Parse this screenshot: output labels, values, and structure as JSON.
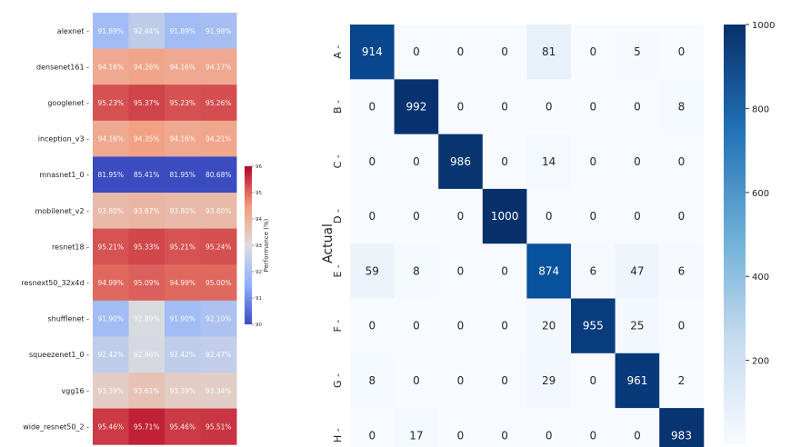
{
  "chart_data": [
    {
      "type": "heatmap",
      "rows": [
        "alexnet",
        "densenet161",
        "googlenet",
        "inception_v3",
        "mnasnet1_0",
        "mobilenet_v2",
        "resnet18",
        "resnext50_32x4d",
        "shufflenet",
        "squeezenet1_0",
        "vgg16",
        "wide_resnet50_2"
      ],
      "labels": [
        [
          "91.89%",
          "92.44%",
          "91.89%",
          "91.98%"
        ],
        [
          "94.16%",
          "94.26%",
          "94.16%",
          "94.17%"
        ],
        [
          "95.23%",
          "95.37%",
          "95.23%",
          "95.26%"
        ],
        [
          "94.16%",
          "94.35%",
          "94.16%",
          "94.21%"
        ],
        [
          "81.95%",
          "85.41%",
          "81.95%",
          "80.68%"
        ],
        [
          "93.80%",
          "93.87%",
          "93.80%",
          "93.80%"
        ],
        [
          "95.21%",
          "95.33%",
          "95.21%",
          "95.24%"
        ],
        [
          "94.99%",
          "95.09%",
          "94.99%",
          "95.00%"
        ],
        [
          "91.90%",
          "92.89%",
          "91.90%",
          "92.10%"
        ],
        [
          "92.42%",
          "92.86%",
          "92.42%",
          "92.47%"
        ],
        [
          "93.39%",
          "93.61%",
          "93.39%",
          "93.34%"
        ],
        [
          "95.46%",
          "95.71%",
          "95.46%",
          "95.51%"
        ]
      ],
      "values": [
        [
          91.89,
          92.44,
          91.89,
          91.98
        ],
        [
          94.16,
          94.26,
          94.16,
          94.17
        ],
        [
          95.23,
          95.37,
          95.23,
          95.26
        ],
        [
          94.16,
          94.35,
          94.16,
          94.21
        ],
        [
          81.95,
          85.41,
          81.95,
          80.68
        ],
        [
          93.8,
          93.87,
          93.8,
          93.8
        ],
        [
          95.21,
          95.33,
          95.21,
          95.24
        ],
        [
          94.99,
          95.09,
          94.99,
          95.0
        ],
        [
          91.9,
          92.89,
          91.9,
          92.1
        ],
        [
          92.42,
          92.86,
          92.42,
          92.47
        ],
        [
          93.39,
          93.61,
          93.39,
          93.34
        ],
        [
          95.46,
          95.71,
          95.46,
          95.51
        ]
      ],
      "colormap": "coolwarm",
      "vmin": 90,
      "vmax": 96,
      "colorbar": {
        "label": "Performance (%)",
        "ticks": [
          "90",
          "91",
          "92",
          "93",
          "94",
          "95",
          "96"
        ]
      }
    },
    {
      "type": "heatmap",
      "ylabel": "Actual",
      "categories": [
        "A",
        "B",
        "C",
        "D",
        "E",
        "F",
        "G",
        "H"
      ],
      "values": [
        [
          914,
          0,
          0,
          0,
          81,
          0,
          5,
          0
        ],
        [
          0,
          992,
          0,
          0,
          0,
          0,
          0,
          8
        ],
        [
          0,
          0,
          986,
          0,
          14,
          0,
          0,
          0
        ],
        [
          0,
          0,
          0,
          1000,
          0,
          0,
          0,
          0
        ],
        [
          59,
          8,
          0,
          0,
          874,
          6,
          47,
          6
        ],
        [
          0,
          0,
          0,
          0,
          20,
          955,
          25,
          0
        ],
        [
          8,
          0,
          0,
          0,
          29,
          0,
          961,
          2
        ],
        [
          0,
          17,
          0,
          0,
          0,
          0,
          0,
          983
        ]
      ],
      "colormap": "Blues",
      "vmin": 0,
      "vmax": 1000,
      "colorbar": {
        "ticks": [
          "200",
          "400",
          "600",
          "800",
          "1000"
        ]
      }
    }
  ]
}
